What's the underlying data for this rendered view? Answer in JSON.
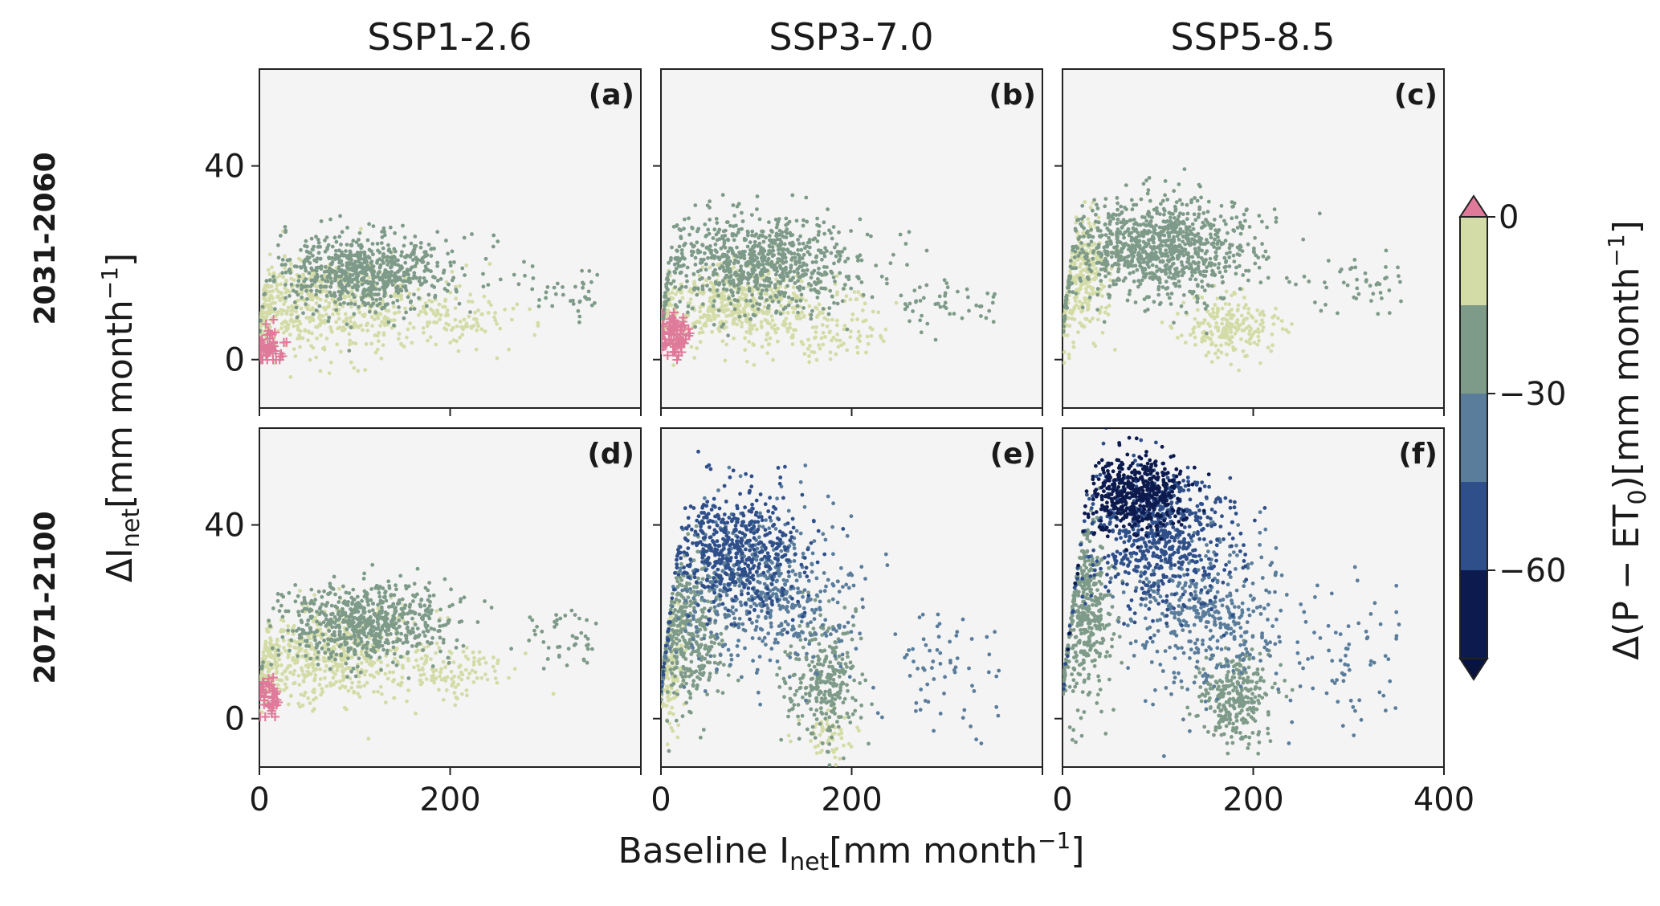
{
  "chart_data": {
    "type": "scatter",
    "layout": "2x3 faceted scatter grid with shared axes",
    "columns": [
      "SSP1-2.6",
      "SSP3-7.0",
      "SSP5-8.5"
    ],
    "rows": [
      "2031-2060",
      "2071-2100"
    ],
    "xlabel": {
      "text": "Baseline I",
      "sub": "net",
      "unit_open": "[mm month",
      "sup": "−1",
      "unit_close": "]"
    },
    "ylabel": {
      "text": "ΔI",
      "sub": "net",
      "unit_open": "[mm month",
      "sup": "−1",
      "unit_close": "]"
    },
    "xlim": [
      0,
      400
    ],
    "ylim": [
      -10,
      60
    ],
    "xticks": [
      0,
      200,
      400
    ],
    "yticks": [
      0,
      40
    ],
    "colorbar": {
      "label": {
        "text": "Δ(P − ET",
        "sub": "0",
        "close": ")[mm month",
        "sup": "−1",
        "end": "]"
      },
      "ticks": [
        0,
        -30,
        -60
      ],
      "tick_labels": [
        "0",
        "−30",
        "−60"
      ],
      "levels": [
        15,
        0,
        -15,
        -30,
        -45,
        -60,
        -75
      ],
      "colors": [
        "#e07a9a",
        "#d3dca6",
        "#7e9a88",
        "#5a7d9c",
        "#2f4f8a",
        "#0d1a4e",
        "#08143d"
      ],
      "extend": "both"
    },
    "legend_note": "Points coloured by change in P − ET0; pink '+' markers indicate Δ(P − ET0) > 0",
    "panels": [
      {
        "id": "(a)",
        "scenario": "SSP1-2.6",
        "period": "2031-2060",
        "max_x": 355,
        "peak": {
          "x": 115,
          "y": 28
        },
        "clusters": [
          {
            "cls": 2,
            "n": 720,
            "cx": 110,
            "sx": 45,
            "cy": 18,
            "sy": 4
          },
          {
            "cls": 1,
            "n": 560,
            "cx": 60,
            "sx": 55,
            "cy": 11,
            "sy": 5
          },
          {
            "cls": 1,
            "n": 120,
            "cx": 200,
            "sx": 35,
            "cy": 8,
            "sy": 3
          },
          {
            "cls": 2,
            "n": 40,
            "cx": 320,
            "sx": 25,
            "cy": 14,
            "sy": 3
          },
          {
            "cls": 0,
            "n": 45,
            "cx": 10,
            "sx": 8,
            "cy": 3,
            "sy": 2
          }
        ]
      },
      {
        "id": "(b)",
        "scenario": "SSP3-7.0",
        "period": "2031-2060",
        "max_x": 350,
        "peak": {
          "x": 65,
          "y": 34
        },
        "clusters": [
          {
            "cls": 2,
            "n": 820,
            "cx": 100,
            "sx": 55,
            "cy": 20,
            "sy": 5
          },
          {
            "cls": 1,
            "n": 520,
            "cx": 80,
            "sx": 55,
            "cy": 11,
            "sy": 4
          },
          {
            "cls": 1,
            "n": 90,
            "cx": 170,
            "sx": 40,
            "cy": 5,
            "sy": 3
          },
          {
            "cls": 2,
            "n": 50,
            "cx": 300,
            "sx": 40,
            "cy": 11,
            "sy": 3
          },
          {
            "cls": 0,
            "n": 70,
            "cx": 15,
            "sx": 9,
            "cy": 5,
            "sy": 2
          }
        ]
      },
      {
        "id": "(c)",
        "scenario": "SSP5-8.5",
        "period": "2031-2060",
        "max_x": 355,
        "peak": {
          "x": 90,
          "y": 35
        },
        "clusters": [
          {
            "cls": 2,
            "n": 980,
            "cx": 100,
            "sx": 50,
            "cy": 23,
            "sy": 5
          },
          {
            "cls": 1,
            "n": 320,
            "cx": 20,
            "sx": 15,
            "cy": 17,
            "sy": 6
          },
          {
            "cls": 1,
            "n": 220,
            "cx": 175,
            "sx": 25,
            "cy": 7,
            "sy": 3
          },
          {
            "cls": 2,
            "n": 45,
            "cx": 310,
            "sx": 35,
            "cy": 15,
            "sy": 4
          }
        ]
      },
      {
        "id": "(d)",
        "scenario": "SSP1-2.6",
        "period": "2071-2100",
        "max_x": 355,
        "peak": {
          "x": 110,
          "y": 30
        },
        "clusters": [
          {
            "cls": 2,
            "n": 680,
            "cx": 110,
            "sx": 45,
            "cy": 20,
            "sy": 4
          },
          {
            "cls": 1,
            "n": 560,
            "cx": 60,
            "sx": 55,
            "cy": 13,
            "sy": 5
          },
          {
            "cls": 1,
            "n": 120,
            "cx": 195,
            "sx": 30,
            "cy": 10,
            "sy": 3
          },
          {
            "cls": 2,
            "n": 45,
            "cx": 320,
            "sx": 25,
            "cy": 17,
            "sy": 3
          },
          {
            "cls": 0,
            "n": 40,
            "cx": 10,
            "sx": 6,
            "cy": 4,
            "sy": 2
          }
        ]
      },
      {
        "id": "(e)",
        "scenario": "SSP3-7.0",
        "period": "2071-2100",
        "max_x": 355,
        "peak": {
          "x": 130,
          "y": 52
        },
        "clusters": [
          {
            "cls": 4,
            "n": 520,
            "cx": 80,
            "sx": 35,
            "cy": 35,
            "sy": 6
          },
          {
            "cls": 3,
            "n": 560,
            "cx": 110,
            "sx": 45,
            "cy": 27,
            "sy": 8
          },
          {
            "cls": 2,
            "n": 380,
            "cx": 30,
            "sx": 18,
            "cy": 18,
            "sy": 8
          },
          {
            "cls": 2,
            "n": 280,
            "cx": 170,
            "sx": 20,
            "cy": 8,
            "sy": 6
          },
          {
            "cls": 1,
            "n": 160,
            "cx": 10,
            "sx": 8,
            "cy": 12,
            "sy": 7
          },
          {
            "cls": 1,
            "n": 60,
            "cx": 175,
            "sx": 15,
            "cy": -4,
            "sy": 3
          },
          {
            "cls": 3,
            "n": 70,
            "cx": 300,
            "sx": 40,
            "cy": 10,
            "sy": 7
          }
        ]
      },
      {
        "id": "(f)",
        "scenario": "SSP5-8.5",
        "period": "2071-2100",
        "max_x": 355,
        "peak": {
          "x": 70,
          "y": 58
        },
        "clusters": [
          {
            "cls": 5,
            "n": 480,
            "cx": 75,
            "sx": 25,
            "cy": 47,
            "sy": 4
          },
          {
            "cls": 4,
            "n": 640,
            "cx": 100,
            "sx": 40,
            "cy": 37,
            "sy": 7
          },
          {
            "cls": 3,
            "n": 420,
            "cx": 150,
            "sx": 40,
            "cy": 22,
            "sy": 8
          },
          {
            "cls": 2,
            "n": 420,
            "cx": 25,
            "sx": 15,
            "cy": 22,
            "sy": 9
          },
          {
            "cls": 2,
            "n": 300,
            "cx": 180,
            "sx": 20,
            "cy": 4,
            "sy": 5
          },
          {
            "cls": 3,
            "n": 70,
            "cx": 300,
            "sx": 40,
            "cy": 11,
            "sy": 8
          }
        ]
      }
    ]
  }
}
